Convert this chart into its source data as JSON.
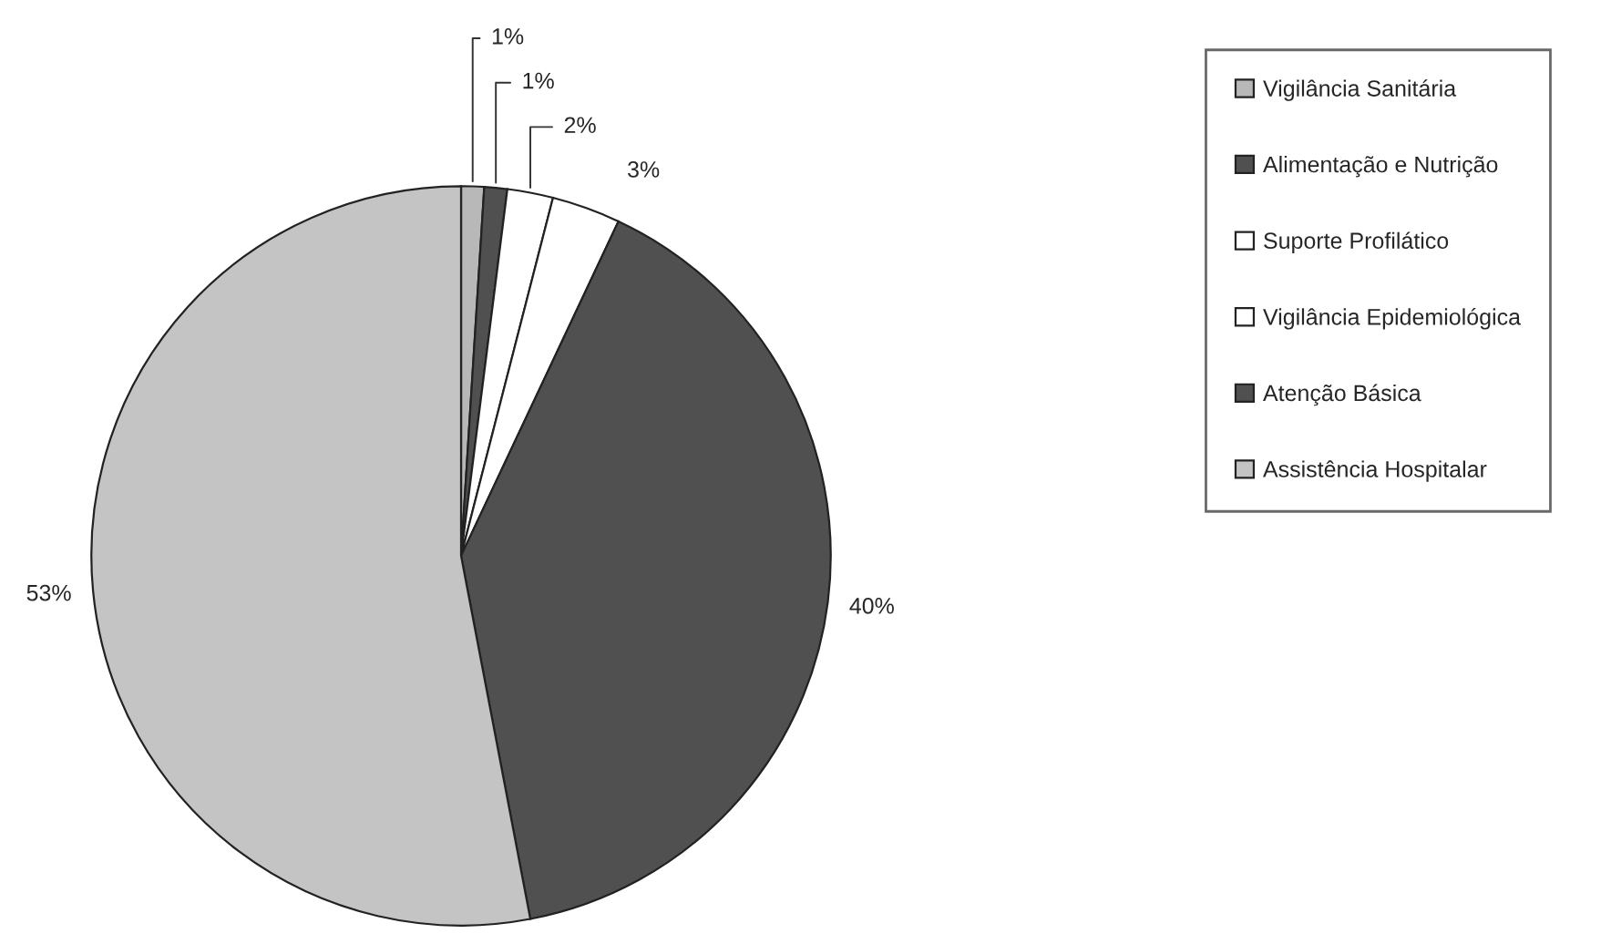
{
  "chart_data": {
    "type": "pie",
    "categories": [
      "Vigilância Sanitária",
      "Alimentação e Nutrição",
      "Suporte Profilático",
      "Vigilância Epidemiológica",
      "Atenção Básica",
      "Assistência Hospitalar"
    ],
    "values": [
      1,
      1,
      2,
      3,
      40,
      53
    ],
    "value_labels": [
      "1%",
      "1%",
      "2%",
      "3%",
      "40%",
      "53%"
    ],
    "colors": [
      "#b8b8b8",
      "#505050",
      "#ffffff",
      "#ffffff",
      "#505050",
      "#c4c4c4"
    ],
    "legend": "right"
  }
}
